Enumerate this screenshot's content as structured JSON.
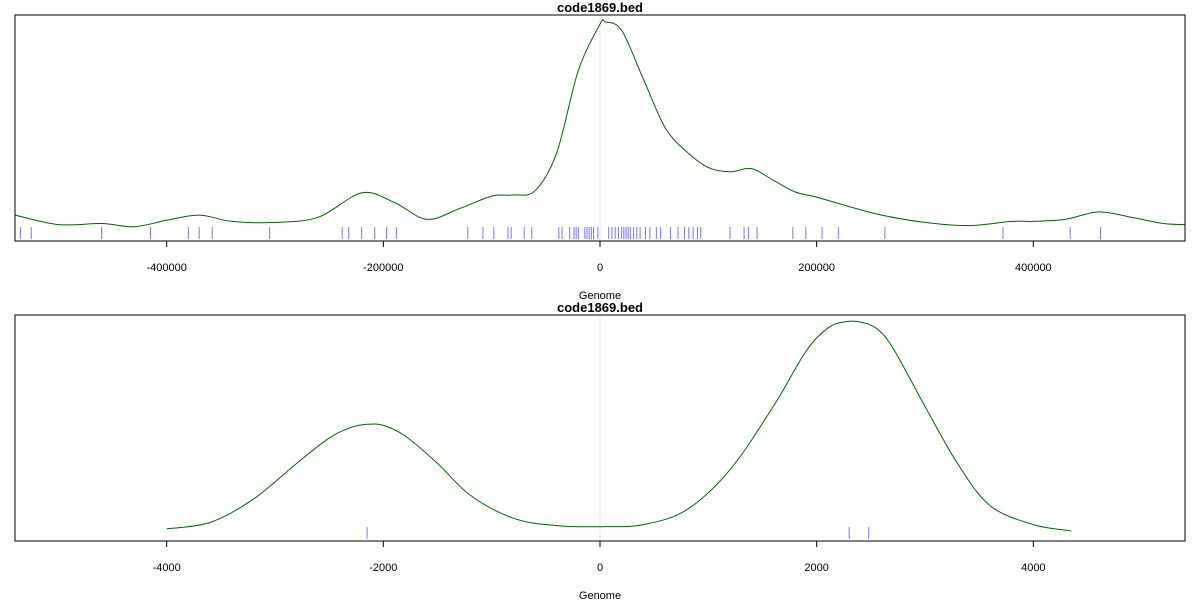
{
  "chart_data": [
    {
      "type": "line",
      "title": "code1869.bed",
      "xlabel": "Genome",
      "ylabel": "",
      "xlim": [
        -540000,
        540000
      ],
      "ylim": [
        0,
        1
      ],
      "x_ticks": [
        -400000,
        -200000,
        0,
        200000,
        400000
      ],
      "tick_labels": [
        "-400000",
        "-200000",
        "0",
        "200000",
        "400000"
      ],
      "density_color": "#006400",
      "rug_color": "#0000ff",
      "center_line_color": "#d3d3d3",
      "grid": false,
      "series": [
        {
          "x": [
            -540000,
            -500000,
            -460000,
            -430000,
            -400000,
            -370000,
            -340000,
            -300000,
            -260000,
            -220000,
            -190000,
            -160000,
            -130000,
            -100000,
            -80000,
            -60000,
            -40000,
            -20000,
            0,
            5000,
            20000,
            40000,
            60000,
            80000,
            100000,
            120000,
            140000,
            160000,
            180000,
            200000,
            230000,
            260000,
            300000,
            340000,
            380000,
            400000,
            430000,
            460000,
            490000,
            520000,
            540000
          ],
          "y": [
            0.085,
            0.04,
            0.045,
            0.03,
            0.06,
            0.085,
            0.055,
            0.05,
            0.075,
            0.19,
            0.145,
            0.065,
            0.115,
            0.175,
            0.18,
            0.2,
            0.38,
            0.77,
            0.99,
            1.0,
            0.96,
            0.73,
            0.5,
            0.385,
            0.31,
            0.29,
            0.305,
            0.25,
            0.195,
            0.17,
            0.125,
            0.085,
            0.05,
            0.035,
            0.055,
            0.055,
            0.065,
            0.1,
            0.075,
            0.045,
            0.04
          ]
        }
      ],
      "rug": [
        -535000,
        -525000,
        -460000,
        -415000,
        -380000,
        -370000,
        -358000,
        -305000,
        -238000,
        -232000,
        -220000,
        -208000,
        -197000,
        -188000,
        -122000,
        -108000,
        -98000,
        -85000,
        -82000,
        -70000,
        -63000,
        -38000,
        -35000,
        -28000,
        -24000,
        -22000,
        -20000,
        -14000,
        -12000,
        -10000,
        -8000,
        -6000,
        -2000,
        8000,
        11000,
        14000,
        17000,
        20000,
        22000,
        24000,
        26000,
        28000,
        31000,
        34000,
        37000,
        42000,
        46000,
        52000,
        56000,
        65000,
        72000,
        78000,
        82000,
        86000,
        90000,
        93000,
        120000,
        133000,
        137000,
        145000,
        178000,
        190000,
        205000,
        220000,
        263000,
        372000,
        434000,
        462000
      ]
    },
    {
      "type": "line",
      "title": "code1869.bed",
      "xlabel": "Genome",
      "ylabel": "",
      "xlim": [
        -5400,
        5400
      ],
      "ylim": [
        0,
        1
      ],
      "x_ticks": [
        -4000,
        -2000,
        0,
        2000,
        4000
      ],
      "tick_labels": [
        "-4000",
        "-2000",
        "0",
        "2000",
        "4000"
      ],
      "density_color": "#006400",
      "rug_color": "#0000ff",
      "center_line_color": "#d3d3d3",
      "grid": false,
      "series": [
        {
          "x": [
            -4000,
            -3600,
            -3200,
            -2800,
            -2500,
            -2300,
            -2150,
            -2000,
            -1800,
            -1500,
            -1200,
            -800,
            -400,
            0,
            400,
            800,
            1200,
            1600,
            1900,
            2100,
            2250,
            2400,
            2550,
            2700,
            3000,
            3300,
            3600,
            4000,
            4350
          ],
          "y": [
            0.02,
            0.05,
            0.16,
            0.33,
            0.45,
            0.5,
            0.515,
            0.51,
            0.46,
            0.33,
            0.18,
            0.07,
            0.035,
            0.03,
            0.04,
            0.11,
            0.3,
            0.6,
            0.86,
            0.97,
            1.0,
            1.0,
            0.97,
            0.88,
            0.6,
            0.33,
            0.13,
            0.04,
            0.01
          ]
        }
      ],
      "rug": [
        -2150,
        2300,
        2480
      ]
    }
  ]
}
